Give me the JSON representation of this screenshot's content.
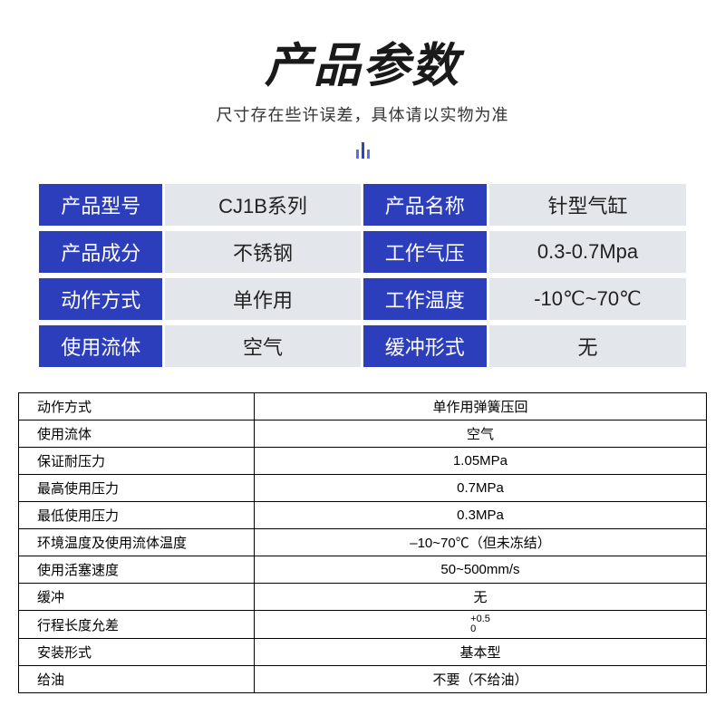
{
  "header": {
    "title": "产品参数",
    "subtitle": "尺寸存在些许误差，具体请以实物为准"
  },
  "colors": {
    "label_bg": "#2d3ebd",
    "label_fg": "#ffffff",
    "value_bg": "#e3e6eb",
    "value_fg": "#222222",
    "detail_border": "#000000",
    "background": "#ffffff"
  },
  "summary": [
    {
      "k1": "产品型号",
      "v1": "CJ1B系列",
      "k2": "产品名称",
      "v2": "针型气缸"
    },
    {
      "k1": "产品成分",
      "v1": "不锈钢",
      "k2": "工作气压",
      "v2": "0.3-0.7Mpa"
    },
    {
      "k1": "动作方式",
      "v1": "单作用",
      "k2": "工作温度",
      "v2": "-10℃~70℃"
    },
    {
      "k1": "使用流体",
      "v1": "空气",
      "k2": "缓冲形式",
      "v2": "无"
    }
  ],
  "detail": [
    {
      "k": "动作方式",
      "v": "单作用弹簧压回"
    },
    {
      "k": "使用流体",
      "v": "空气"
    },
    {
      "k": "保证耐压力",
      "v": "1.05MPa"
    },
    {
      "k": "最高使用压力",
      "v": "0.7MPa"
    },
    {
      "k": "最低使用压力",
      "v": "0.3MPa"
    },
    {
      "k": "环境温度及使用流体温度",
      "v": "–10~70℃（但未冻结）"
    },
    {
      "k": "使用活塞速度",
      "v": "50~500mm/s"
    },
    {
      "k": "缓冲",
      "v": "无"
    },
    {
      "k": "行程长度允差",
      "v_tol_up": "+0.5",
      "v_tol_dn": "0"
    },
    {
      "k": "安装形式",
      "v": "基本型"
    },
    {
      "k": "给油",
      "v": "不要（不给油）"
    }
  ]
}
